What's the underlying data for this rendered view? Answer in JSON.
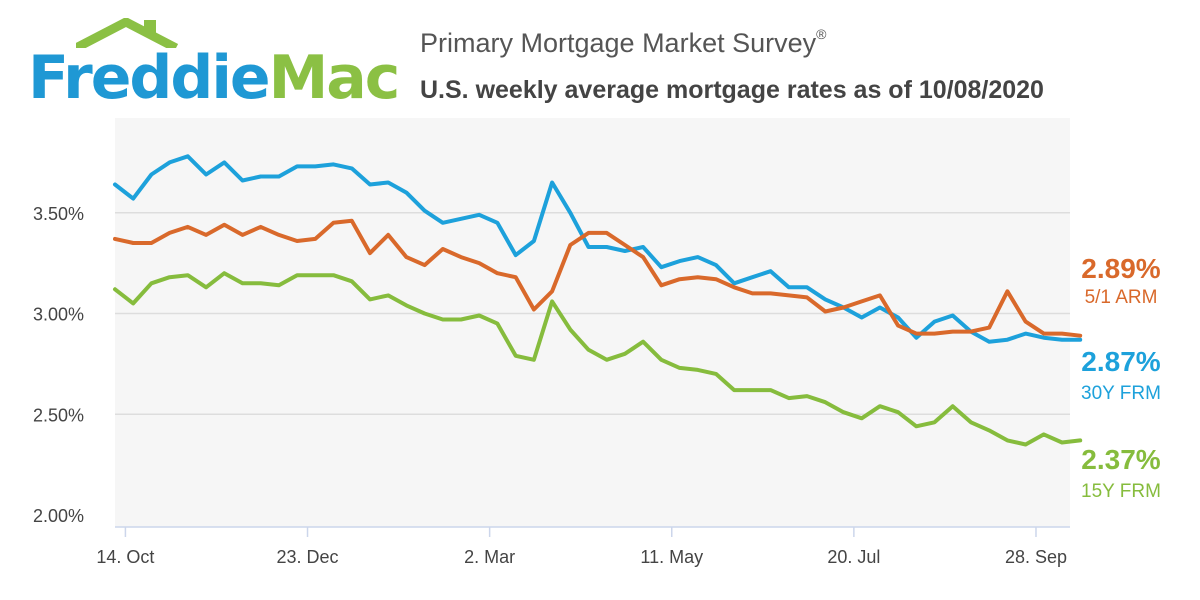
{
  "logo": {
    "part1": "Freddie",
    "part2": "Mac"
  },
  "header": {
    "title": "Primary Mortgage Market Survey",
    "title_mark": "®",
    "subtitle": "U.S. weekly average mortgage rates as of 10/08/2020"
  },
  "colors": {
    "arm_5_1": "#d9692b",
    "frm_30y": "#1da1db",
    "frm_15y": "#86bc3d",
    "plot_bg": "#f6f6f6",
    "grid": "#dddddd"
  },
  "chart_data": {
    "type": "line",
    "x_unit": "weekly",
    "x_start": "2019-10-10",
    "x_end": "2020-10-08",
    "ylim": [
      2.0,
      4.0
    ],
    "y_ticks": [
      "2.00%",
      "2.50%",
      "3.00%",
      "3.50%"
    ],
    "y_tick_values": [
      2.0,
      2.5,
      3.0,
      3.5
    ],
    "x_ticks": [
      "14. Oct",
      "23. Dec",
      "2. Mar",
      "11. May",
      "20. Jul",
      "28. Sep"
    ],
    "x_tick_dates": [
      "2019-10-14",
      "2019-12-23",
      "2020-03-02",
      "2020-05-11",
      "2020-07-20",
      "2020-09-28"
    ],
    "grid": true,
    "series": [
      {
        "name": "5/1 ARM",
        "end_label": "2.89%",
        "values": [
          3.37,
          3.35,
          3.35,
          3.4,
          3.43,
          3.39,
          3.44,
          3.39,
          3.43,
          3.39,
          3.36,
          3.37,
          3.45,
          3.46,
          3.3,
          3.39,
          3.28,
          3.24,
          3.32,
          3.28,
          3.25,
          3.2,
          3.18,
          3.02,
          3.11,
          3.34,
          3.4,
          3.4,
          3.34,
          3.28,
          3.14,
          3.17,
          3.18,
          3.17,
          3.13,
          3.1,
          3.1,
          3.09,
          3.08,
          3.01,
          3.03,
          3.06,
          3.09,
          2.94,
          2.9,
          2.9,
          2.91,
          2.91,
          2.93,
          3.11,
          2.96,
          2.9,
          2.9,
          2.89
        ]
      },
      {
        "name": "30Y FRM",
        "end_label": "2.87%",
        "values": [
          3.64,
          3.57,
          3.69,
          3.75,
          3.78,
          3.69,
          3.75,
          3.66,
          3.68,
          3.68,
          3.73,
          3.73,
          3.74,
          3.72,
          3.64,
          3.65,
          3.6,
          3.51,
          3.45,
          3.47,
          3.49,
          3.45,
          3.29,
          3.36,
          3.65,
          3.5,
          3.33,
          3.33,
          3.31,
          3.33,
          3.23,
          3.26,
          3.28,
          3.24,
          3.15,
          3.18,
          3.21,
          3.13,
          3.13,
          3.07,
          3.03,
          2.98,
          3.03,
          2.98,
          2.88,
          2.96,
          2.99,
          2.91,
          2.86,
          2.87,
          2.9,
          2.88,
          2.87,
          2.87
        ]
      },
      {
        "name": "15Y FRM",
        "end_label": "2.37%",
        "values": [
          3.12,
          3.05,
          3.15,
          3.18,
          3.19,
          3.13,
          3.2,
          3.15,
          3.15,
          3.14,
          3.19,
          3.19,
          3.19,
          3.16,
          3.07,
          3.09,
          3.04,
          3.0,
          2.97,
          2.97,
          2.99,
          2.95,
          2.79,
          2.77,
          3.06,
          2.92,
          2.82,
          2.77,
          2.8,
          2.86,
          2.77,
          2.73,
          2.72,
          2.7,
          2.62,
          2.62,
          2.62,
          2.58,
          2.59,
          2.56,
          2.51,
          2.48,
          2.54,
          2.51,
          2.44,
          2.46,
          2.54,
          2.46,
          2.42,
          2.37,
          2.35,
          2.4,
          2.36,
          2.37
        ]
      }
    ]
  }
}
